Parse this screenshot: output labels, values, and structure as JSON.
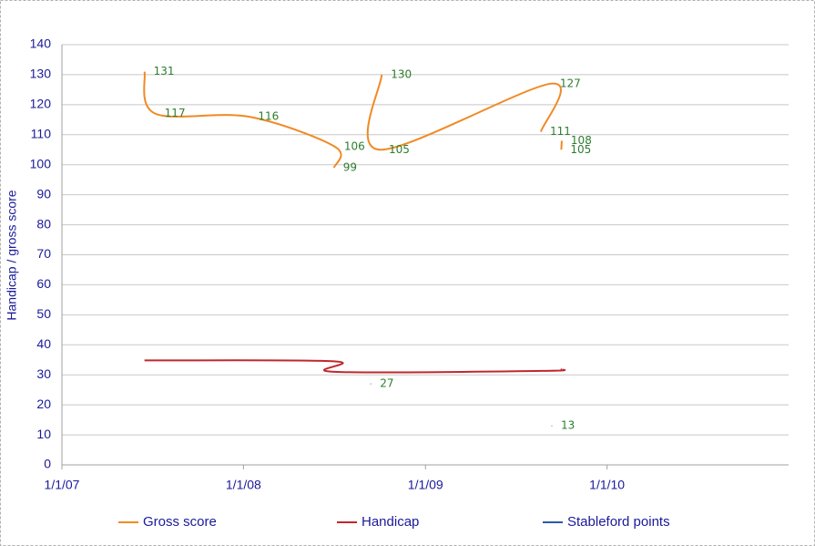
{
  "chart_data": {
    "type": "line",
    "y_label": "Handicap / gross score",
    "xlim": [
      "2007-01-01",
      "2011-01-01"
    ],
    "xticks": [
      {
        "value": "2007-01-01",
        "label": "1/1/07"
      },
      {
        "value": "2008-01-01",
        "label": "1/1/08"
      },
      {
        "value": "2009-01-01",
        "label": "1/1/09"
      },
      {
        "value": "2010-01-01",
        "label": "1/1/10"
      }
    ],
    "ylim": [
      0,
      140
    ],
    "yticks": [
      0,
      10,
      20,
      30,
      40,
      50,
      60,
      70,
      80,
      90,
      100,
      110,
      120,
      130,
      140
    ],
    "grid": true,
    "smooth": true,
    "legend": "bottom",
    "series": [
      {
        "name": "Gross score",
        "color": "#f08a24",
        "show_labels": true,
        "x": [
          "2007-06-16",
          "2007-07-08",
          "2008-01-12",
          "2008-07-03",
          "2008-07-01",
          null,
          "2008-10-05",
          "2008-10-01",
          "2009-09-10",
          "2009-08-21",
          null,
          "2009-10-02",
          "2009-10-01"
        ],
        "values": [
          131,
          117,
          116,
          106,
          99,
          null,
          130,
          105,
          127,
          111,
          null,
          108,
          105
        ]
      },
      {
        "name": "Handicap",
        "color": "#c0282d",
        "show_labels": false,
        "x": [
          "2007-06-16",
          "2008-07-01",
          "2008-07-02",
          "2009-08-23",
          "2009-10-02"
        ],
        "values": [
          34.8,
          34.5,
          31,
          31.3,
          31.8
        ]
      },
      {
        "name": "Stableford points",
        "color": "#2a5caa",
        "show_labels": true,
        "x": [
          "2008-09-13",
          null,
          "2009-09-12"
        ],
        "values": [
          27,
          null,
          13
        ]
      }
    ]
  }
}
